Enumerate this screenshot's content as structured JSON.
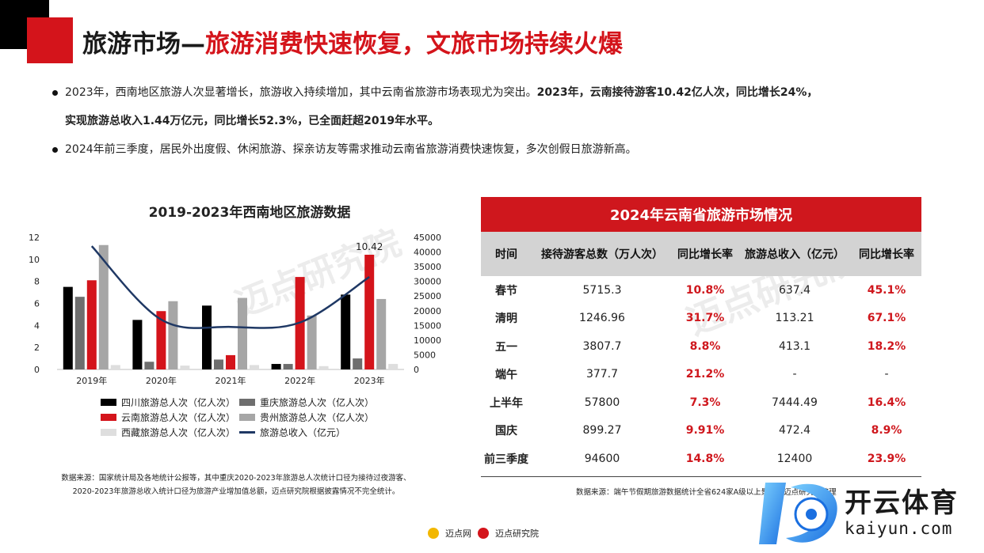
{
  "header": {
    "title_black": "旅游市场—",
    "title_red": "旅游消费快速恢复，文旅市场持续火爆"
  },
  "bullets": {
    "b1_normal": "2023年，西南地区旅游人次显著增长，旅游收入持续增加，其中云南省旅游市场表现尤为突出。",
    "b1_bold": "2023年，云南接待游客10.42亿人次，同比增长24%，",
    "b1_line2": "实现旅游总收入1.44万亿元，同比增长52.3%，已全面赶超2019年水平。",
    "b2": "2024年前三季度，居民外出度假、休闲旅游、探亲访友等需求推动云南省旅游消费快速恢复，多次创假日旅游新高。"
  },
  "chart_data": {
    "type": "bar",
    "title": "2019-2023年西南地区旅游数据",
    "categories": [
      "2019年",
      "2020年",
      "2021年",
      "2022年",
      "2023年"
    ],
    "ylim_left": [
      0,
      12
    ],
    "yticks_left": [
      "0",
      "2",
      "4",
      "6",
      "8",
      "10",
      "12"
    ],
    "ylim_right": [
      0,
      45000
    ],
    "yticks_right": [
      "0",
      "5000",
      "10000",
      "15000",
      "20000",
      "25000",
      "30000",
      "35000",
      "40000",
      "45000"
    ],
    "series": [
      {
        "name": "四川旅游总人次（亿人次）",
        "color": "#000000",
        "values": [
          7.5,
          null,
          5.8,
          null,
          6.8
        ]
      },
      {
        "name": "重庆旅游总人次（亿人次）",
        "color": "#6e6e6e",
        "values": [
          6.6,
          0.7,
          0.9,
          0.5,
          1.0
        ]
      },
      {
        "name": "云南旅游总人次（亿人次）",
        "color": "#d4141b",
        "values": [
          8.1,
          5.3,
          1.3,
          8.4,
          10.42
        ]
      },
      {
        "name": "贵州旅游总人次（亿人次）",
        "color": "#a6a6a6",
        "values": [
          11.3,
          6.2,
          6.5,
          4.9,
          6.4
        ]
      },
      {
        "name": "西藏旅游总人次（亿人次）",
        "color": "#dedede",
        "values": [
          0.4,
          0.35,
          0.4,
          0.3,
          0.5
        ]
      }
    ],
    "bar_series_2020_sichuan": 4.5,
    "bar_series_2022_sichuan": 0.5,
    "line_series": {
      "name": "旅游总收入（亿元）",
      "color": "#1f3864",
      "values": [
        42000,
        17000,
        14500,
        16000,
        31500
      ]
    },
    "data_labels": [
      {
        "category": "2023年",
        "series": "云南旅游总人次（亿人次）",
        "text": "10.42"
      }
    ],
    "grid": false,
    "legend": "bottom"
  },
  "source_left": {
    "line1": "数据来源：国家统计局及各地统计公报等，其中重庆2020-2023年旅游总人次统计口径为接待过夜游客、",
    "line2": "2020-2023年旅游总收入统计口径为旅游产业增加值总额，迈点研究院根据披露情况不完全统计。"
  },
  "table": {
    "title": "2024年云南省旅游市场情况",
    "headers": [
      "时间",
      "接待游客总数（万人次）",
      "同比增长率",
      "旅游总收入（亿元）",
      "同比增长率"
    ],
    "rows": [
      [
        "春节",
        "5715.3",
        "10.8%",
        "637.4",
        "45.1%"
      ],
      [
        "清明",
        "1246.96",
        "31.7%",
        "113.21",
        "67.1%"
      ],
      [
        "五一",
        "3807.7",
        "8.8%",
        "413.1",
        "18.2%"
      ],
      [
        "端午",
        "377.7",
        "21.2%",
        "-",
        "-"
      ],
      [
        "上半年",
        "57800",
        "7.3%",
        "7444.49",
        "16.4%"
      ],
      [
        "国庆",
        "899.27",
        "9.91%",
        "472.4",
        "8.9%"
      ],
      [
        "前三季度",
        "94600",
        "14.8%",
        "12400",
        "23.9%"
      ]
    ]
  },
  "source_right": "数据来源：端午节假期旅游数据统计全省624家A级以上景区，迈点研究院整理",
  "footer": {
    "logo1": "迈点网",
    "logo2": "迈点研究院"
  },
  "watermark": {
    "text": "迈点研究院"
  },
  "brand": {
    "name": "开云体育",
    "domain": "kaiyun.com",
    "red": "#d4141b"
  }
}
